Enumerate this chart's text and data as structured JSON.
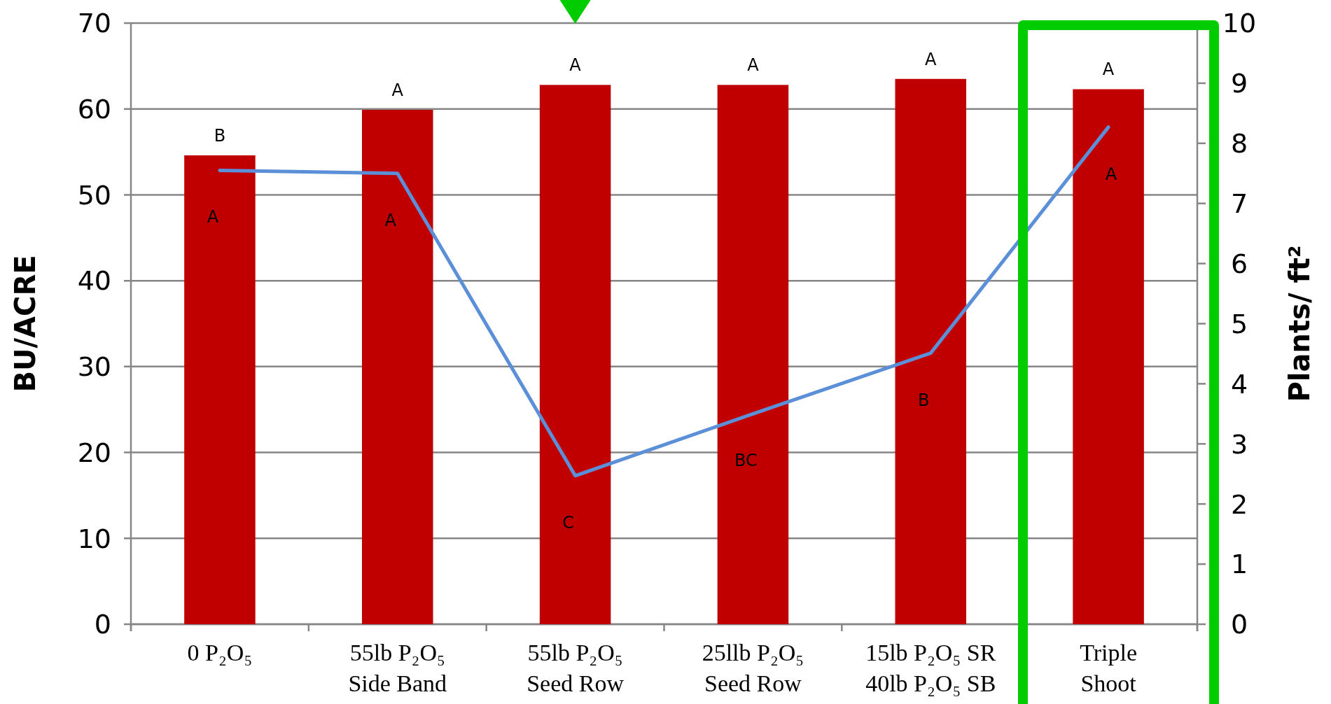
{
  "chart_data": {
    "type": "bar",
    "ylabel": "BU/ACRE",
    "y2label": "Plants/ ft²",
    "categories": [
      "0 P₂O₅",
      "55lb P₂O₅\nSide Band",
      "55lb P₂O₅\nSeed Row",
      "25llb P₂O₅\nSeed Row",
      "15lb P₂O₅ SR\n40lb P₂O₅ SB",
      "Triple\nShoot"
    ],
    "series": [
      {
        "color": "#c00000",
        "values": [
          54.6,
          59.9,
          62.8,
          62.8,
          63.5,
          62.3
        ],
        "value_labels": [
          "B",
          "A",
          "A",
          "A",
          "A",
          "A"
        ]
      },
      {
        "type": "line",
        "axis": "y2",
        "color": "#5b8fd8",
        "values": [
          7.55,
          7.5,
          2.47,
          3.5,
          4.51,
          8.27
        ],
        "value_labels": [
          "A",
          "A",
          "C",
          "BC",
          "B",
          "A"
        ]
      }
    ],
    "ylim": [
      0,
      70
    ],
    "yticks": [
      0,
      10,
      20,
      30,
      40,
      50,
      60,
      70
    ],
    "y2lim": [
      0,
      10
    ],
    "y2ticks": [
      0,
      1,
      2,
      3,
      4,
      5,
      6,
      7,
      8,
      9,
      10
    ],
    "grid": "y",
    "marker": "none",
    "line_style": "solid"
  }
}
